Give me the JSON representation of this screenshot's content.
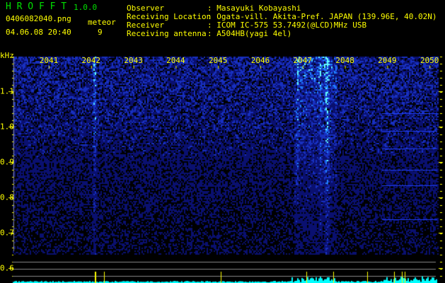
{
  "app": {
    "name": "H R O F F T",
    "version": "1.0.0"
  },
  "file": {
    "name": "0406082040.png",
    "datetime": "04.06.08 20:40"
  },
  "meteor": {
    "label": "meteor",
    "count": "9"
  },
  "info": [
    {
      "label": "Observer",
      "value": ": Masayuki Kobayashi"
    },
    {
      "label": "Receiving Location",
      "value": ": Ogata-vill. Akita-Pref. JAPAN (139.96E, 40.02N)"
    },
    {
      "label": "Receiver",
      "value": ": ICOM IC-575 53.7492(@LCD)MHz USB"
    },
    {
      "label": "Receiving antenna",
      "value": ": A504HB(yagi 4el)"
    }
  ],
  "axis": {
    "unit": "kHz",
    "x_ticks": [
      "2041",
      "2042",
      "2043",
      "2044",
      "2045",
      "2046",
      "2047",
      "2048",
      "2049",
      "2050"
    ],
    "y_ticks": [
      "1.1",
      "1.0",
      "0.9",
      "0.8",
      "0.7",
      "0.6"
    ]
  },
  "colors": {
    "text": "#ffff00",
    "title": "#00e000",
    "background": "#000000",
    "histogram": "#00ffff"
  }
}
